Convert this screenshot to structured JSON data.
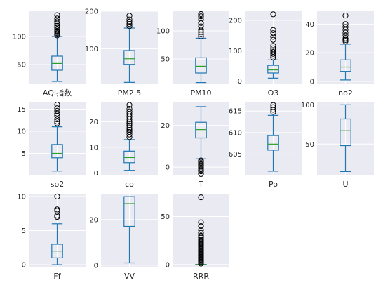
{
  "colors": {
    "plot_background": "#EAEAF2",
    "gridline": "#FFFFFF",
    "box": "#1F77B4",
    "median": "#2CA02C",
    "outlier": "#000000"
  },
  "chart_data": [
    {
      "type": "box",
      "category": "AQI指数",
      "ylim": [
        15,
        145
      ],
      "yticks": [
        50,
        100
      ],
      "whisker_low": 20,
      "q1": 40,
      "median": 52,
      "q3": 65,
      "whisker_high": 100,
      "outliers": [
        102,
        104,
        106,
        108,
        110,
        113,
        116,
        119,
        123,
        127,
        132,
        138
      ]
    },
    {
      "type": "box",
      "category": "PM2.5",
      "ylim": [
        5,
        200
      ],
      "yticks": [
        100,
        200
      ],
      "whisker_low": 10,
      "q1": 58,
      "median": 73,
      "q3": 95,
      "whisker_high": 155,
      "outliers": [
        160,
        166,
        172,
        178,
        188
      ]
    },
    {
      "type": "box",
      "category": "PM10",
      "ylim": [
        5,
        135
      ],
      "yticks": [
        50,
        100
      ],
      "whisker_low": 8,
      "q1": 25,
      "median": 37,
      "q3": 52,
      "whisker_high": 87,
      "outliers": [
        90,
        94,
        98,
        102,
        108,
        114,
        120,
        126,
        130
      ]
    },
    {
      "type": "box",
      "category": "O3",
      "ylim": [
        -10,
        230
      ],
      "yticks": [
        0,
        100,
        200
      ],
      "whisker_low": 10,
      "q1": 27,
      "median": 37,
      "q3": 52,
      "whisker_high": 70,
      "outliers": [
        78,
        84,
        90,
        96,
        102,
        108,
        116,
        136,
        146,
        158,
        168,
        220
      ]
    },
    {
      "type": "box",
      "category": "no2",
      "ylim": [
        -2,
        49
      ],
      "yticks": [
        0,
        20,
        40
      ],
      "whisker_low": 1,
      "q1": 7,
      "median": 10,
      "q3": 15,
      "whisker_high": 26,
      "outliers": [
        28,
        29,
        30,
        32,
        34,
        36,
        38,
        40,
        46
      ]
    },
    {
      "type": "box",
      "category": "so2",
      "ylim": [
        0,
        16.5
      ],
      "yticks": [
        5,
        10,
        15
      ],
      "whisker_low": 1,
      "q1": 4,
      "median": 5,
      "q3": 7,
      "whisker_high": 11,
      "outliers": [
        11.8,
        12.2,
        12.7,
        13.5,
        14,
        14.6,
        15.2,
        16
      ]
    },
    {
      "type": "box",
      "category": "co",
      "ylim": [
        -1,
        27.5
      ],
      "yticks": [
        0,
        10,
        20
      ],
      "whisker_low": 1,
      "q1": 4,
      "median": 6,
      "q3": 8.5,
      "whisker_high": 13,
      "outliers": [
        14,
        15,
        16,
        16.8,
        17.5,
        18.5,
        19.3,
        20,
        21,
        22,
        23,
        24,
        25,
        26.5
      ]
    },
    {
      "type": "box",
      "category": "T",
      "ylim": [
        -4,
        31
      ],
      "yticks": [
        0,
        20
      ],
      "whisker_low": 4,
      "q1": 14,
      "median": 18,
      "q3": 21.5,
      "whisker_high": 29,
      "outliers": [
        3.2,
        2.6,
        2,
        1.4,
        0.8,
        0.2,
        -0.6,
        -1.4,
        -2,
        -3.3
      ]
    },
    {
      "type": "box",
      "category": "Po",
      "ylim": [
        600,
        617
      ],
      "yticks": [
        605,
        610,
        615
      ],
      "whisker_low": 601,
      "q1": 605.9,
      "median": 607.3,
      "q3": 609.3,
      "whisker_high": 614,
      "outliers": [
        614.8,
        615.3,
        615.9,
        616.4
      ]
    },
    {
      "type": "box",
      "category": "U",
      "ylim": [
        10,
        103
      ],
      "yticks": [
        50,
        100
      ],
      "whisker_low": 15,
      "q1": 48,
      "median": 67,
      "q3": 82,
      "whisker_high": 100,
      "outliers": []
    },
    {
      "type": "box",
      "category": "Ff",
      "ylim": [
        -0.4,
        10.3
      ],
      "yticks": [
        0,
        5,
        10
      ],
      "whisker_low": 0,
      "q1": 1,
      "median": 2,
      "q3": 3,
      "whisker_high": 6,
      "outliers": [
        7,
        7.2,
        7.9,
        8.1,
        10
      ]
    },
    {
      "type": "box",
      "category": "VV",
      "ylim": [
        -1,
        31
      ],
      "yticks": [
        0,
        20
      ],
      "whisker_low": 1,
      "q1": 17,
      "median": 27,
      "q3": 30,
      "whisker_high": 30,
      "outliers": []
    },
    {
      "type": "box",
      "category": "RRR",
      "ylim": [
        -3,
        73
      ],
      "yticks": [
        0,
        50
      ],
      "whisker_low": 0,
      "q1": 0,
      "median": 0,
      "q3": 0,
      "whisker_high": 0,
      "outliers": [
        1,
        2,
        3,
        4,
        5,
        6,
        7,
        8,
        9,
        10,
        11,
        12,
        13,
        14,
        15,
        16,
        17,
        18,
        19,
        20,
        21,
        22,
        23,
        24,
        25,
        26,
        28,
        30,
        33,
        36,
        40,
        44,
        70
      ]
    }
  ]
}
